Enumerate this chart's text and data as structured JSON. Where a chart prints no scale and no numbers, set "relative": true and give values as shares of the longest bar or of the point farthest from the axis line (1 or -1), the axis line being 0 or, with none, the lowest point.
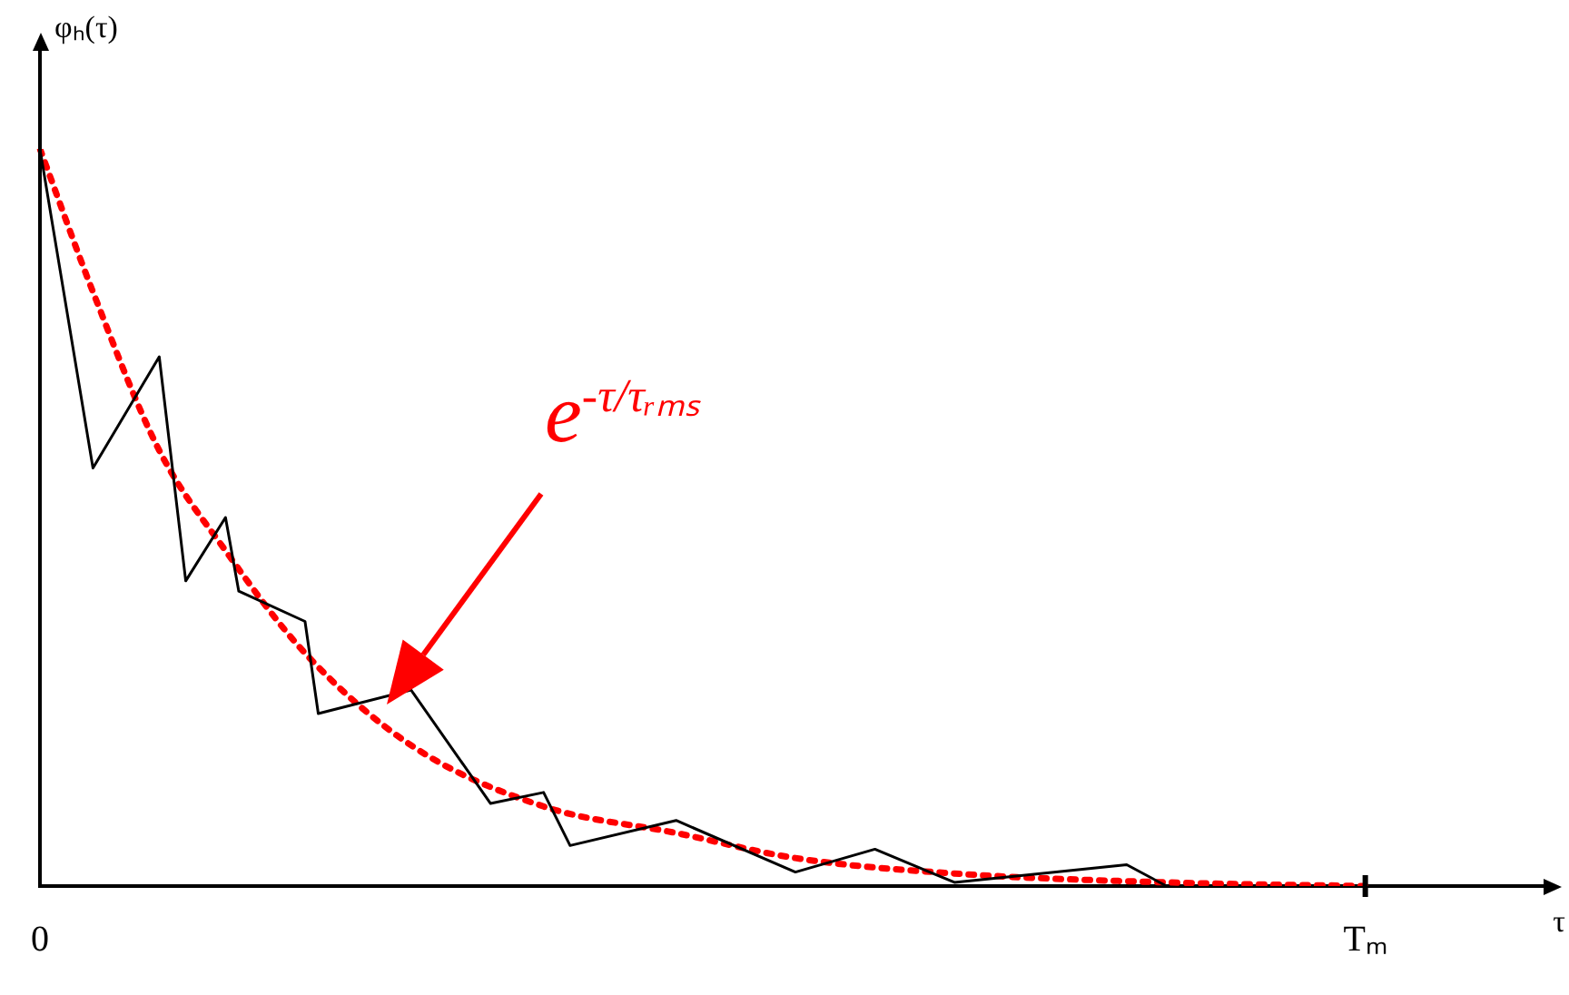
{
  "chart_data": {
    "type": "line",
    "relative": true,
    "xlabel": "τ",
    "ylabel": "φₕ(τ)",
    "categories": [
      "0",
      null,
      null,
      null,
      null,
      null,
      null,
      null,
      null,
      null,
      null,
      null,
      null,
      null,
      null,
      null,
      null,
      null,
      null,
      null,
      null,
      null,
      null,
      null,
      null,
      null,
      null,
      null,
      null,
      null,
      null,
      null,
      null,
      null,
      null,
      null,
      null,
      null,
      null,
      null,
      null,
      null,
      null,
      null,
      null,
      null,
      null,
      null,
      null,
      null,
      null,
      null,
      null,
      null,
      null,
      null,
      null,
      null,
      null,
      null,
      null,
      null,
      null,
      null,
      null,
      null,
      null,
      null,
      null,
      null,
      null,
      null,
      null,
      null,
      null,
      null,
      null,
      null,
      null,
      null,
      null,
      null,
      null,
      null,
      null,
      null,
      null,
      null,
      null,
      null,
      null,
      null,
      null,
      null,
      null,
      null,
      null,
      null,
      null,
      null,
      "Tₘ",
      null,
      null,
      null,
      null,
      null,
      null,
      null,
      null,
      null,
      null,
      null,
      null,
      null,
      null
    ],
    "marker": "none",
    "series": [
      {
        "color": "#000000",
        "line_style": "solid",
        "values": [
          1,
          null,
          null,
          null,
          0.567,
          null,
          null,
          null,
          null,
          0.718,
          null,
          0.414,
          null,
          null,
          0.5,
          0.4,
          null,
          null,
          null,
          null,
          0.359,
          0.234,
          null,
          null,
          null,
          null,
          null,
          null,
          0.266,
          null,
          null,
          null,
          null,
          null,
          0.112,
          null,
          null,
          null,
          0.127,
          null,
          0.055,
          null,
          null,
          null,
          null,
          null,
          null,
          null,
          0.089,
          null,
          null,
          null,
          null,
          null,
          null,
          null,
          null,
          0.019,
          null,
          null,
          null,
          null,
          null,
          0.05,
          null,
          null,
          null,
          null,
          null,
          0.005,
          null,
          null,
          null,
          null,
          null,
          null,
          null,
          null,
          null,
          null,
          null,
          null,
          0.029,
          null,
          null,
          0,
          null,
          null,
          null,
          null,
          null,
          null,
          null,
          null,
          null,
          null,
          null,
          null,
          null,
          null,
          null,
          null,
          null,
          null,
          null,
          null,
          null,
          null,
          null,
          null,
          null,
          null,
          null,
          null,
          null
        ]
      },
      {
        "color": "#ff0000",
        "line_style": "dotted",
        "values": [
          1,
          null,
          null,
          null,
          0.806,
          null,
          null,
          null,
          null,
          0.591,
          null,
          null,
          null,
          null,
          0.455,
          null,
          null,
          null,
          null,
          null,
          0.316,
          null,
          null,
          null,
          null,
          null,
          null,
          null,
          0.191,
          null,
          null,
          null,
          null,
          null,
          null,
          null,
          null,
          null,
          0.108,
          null,
          null,
          null,
          null,
          null,
          null,
          null,
          null,
          null,
          0.072,
          null,
          null,
          null,
          null,
          null,
          null,
          null,
          null,
          0.038,
          null,
          null,
          null,
          null,
          null,
          null,
          null,
          null,
          null,
          null,
          null,
          0.017,
          null,
          null,
          null,
          null,
          null,
          null,
          null,
          null,
          null,
          null,
          null,
          null,
          null,
          null,
          null,
          0.005,
          null,
          null,
          null,
          null,
          null,
          null,
          null,
          null,
          null,
          null,
          null,
          null,
          null,
          null,
          0,
          null,
          null,
          null,
          null,
          null,
          null,
          null,
          null,
          null,
          null,
          null,
          null,
          null,
          null
        ]
      }
    ],
    "annotations": [
      "e$^{-τ/τᵣₘₛ}$"
    ]
  }
}
